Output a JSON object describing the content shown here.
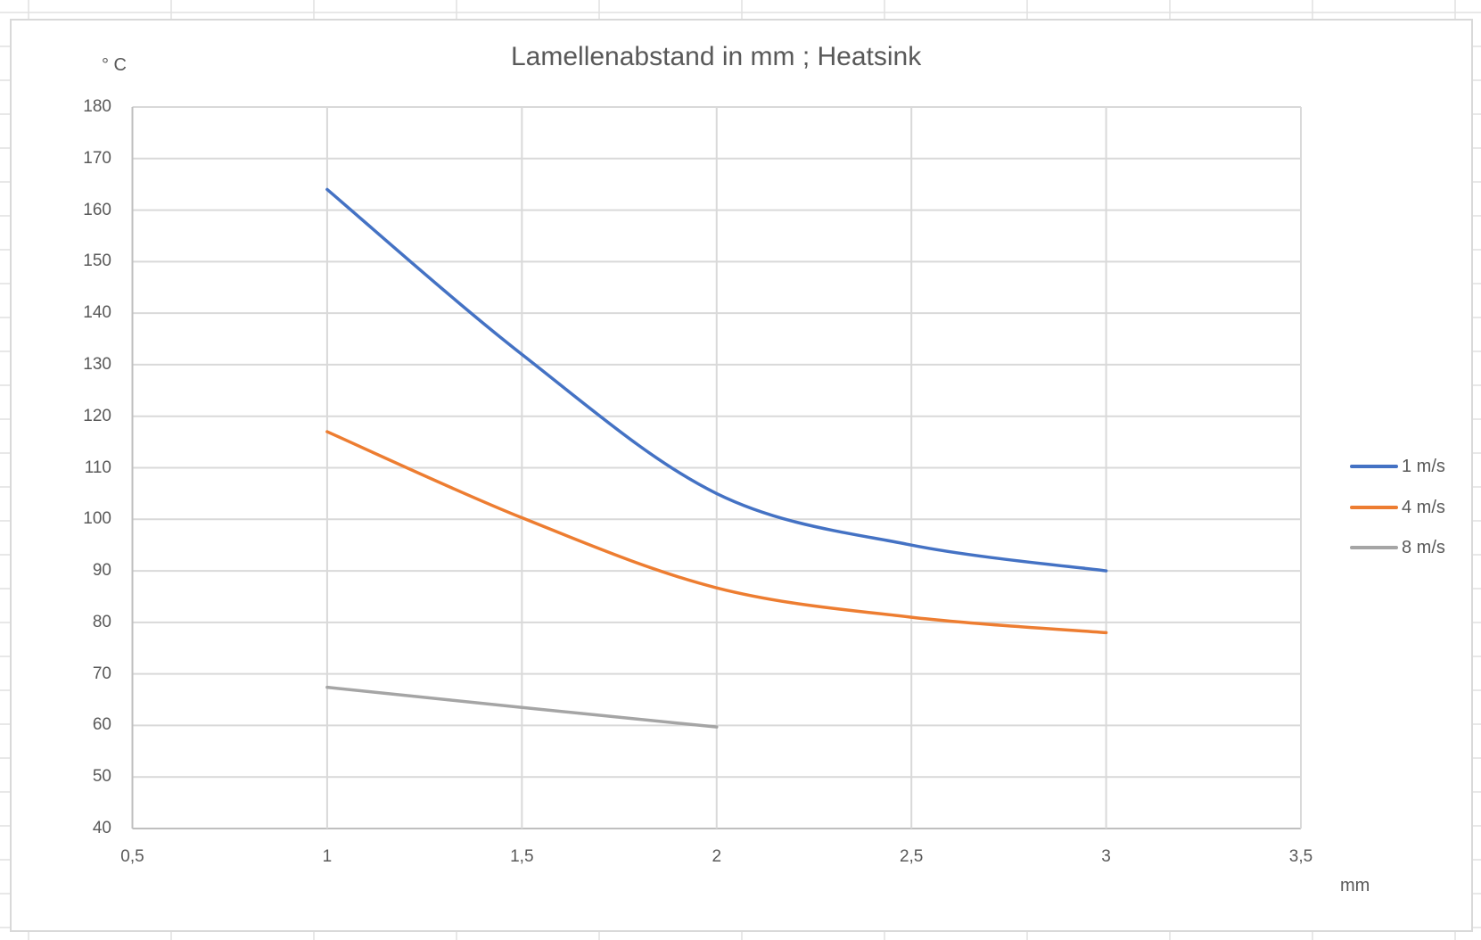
{
  "chart_data": {
    "type": "line",
    "title": "Lamellenabstand in mm ; Heatsink",
    "xlabel": "mm",
    "ylabel": "° C",
    "x": [
      1,
      1.5,
      2,
      2.5,
      3
    ],
    "xlim": [
      0.5,
      3.5
    ],
    "ylim": [
      40,
      180
    ],
    "x_ticks": [
      "0,5",
      "1",
      "1,5",
      "2",
      "2,5",
      "3",
      "3,5"
    ],
    "y_ticks": [
      "180",
      "170",
      "160",
      "150",
      "140",
      "130",
      "120",
      "110",
      "100",
      "90",
      "80",
      "70",
      "60",
      "50",
      "40"
    ],
    "grid": true,
    "smooth": true,
    "legend_position": "right",
    "series": [
      {
        "name": "1 m/s",
        "color": "#4472c4",
        "x": [
          1,
          1.5,
          2,
          2.5,
          3
        ],
        "values": [
          164,
          132,
          105,
          95,
          90
        ]
      },
      {
        "name": "4 m/s",
        "color": "#ed7d31",
        "x": [
          1,
          1.5,
          2,
          2.5,
          3
        ],
        "values": [
          117,
          100.3,
          86.7,
          81,
          78
        ]
      },
      {
        "name": "8 m/s",
        "color": "#a5a5a5",
        "x": [
          1,
          1.5,
          2
        ],
        "values": [
          67.4,
          63.5,
          59.7
        ]
      }
    ]
  },
  "colors": {
    "gridline": "#d9d9d9",
    "axis": "#bfbfbf",
    "text": "#595959",
    "sheet_grid": "#e1e1e1"
  }
}
